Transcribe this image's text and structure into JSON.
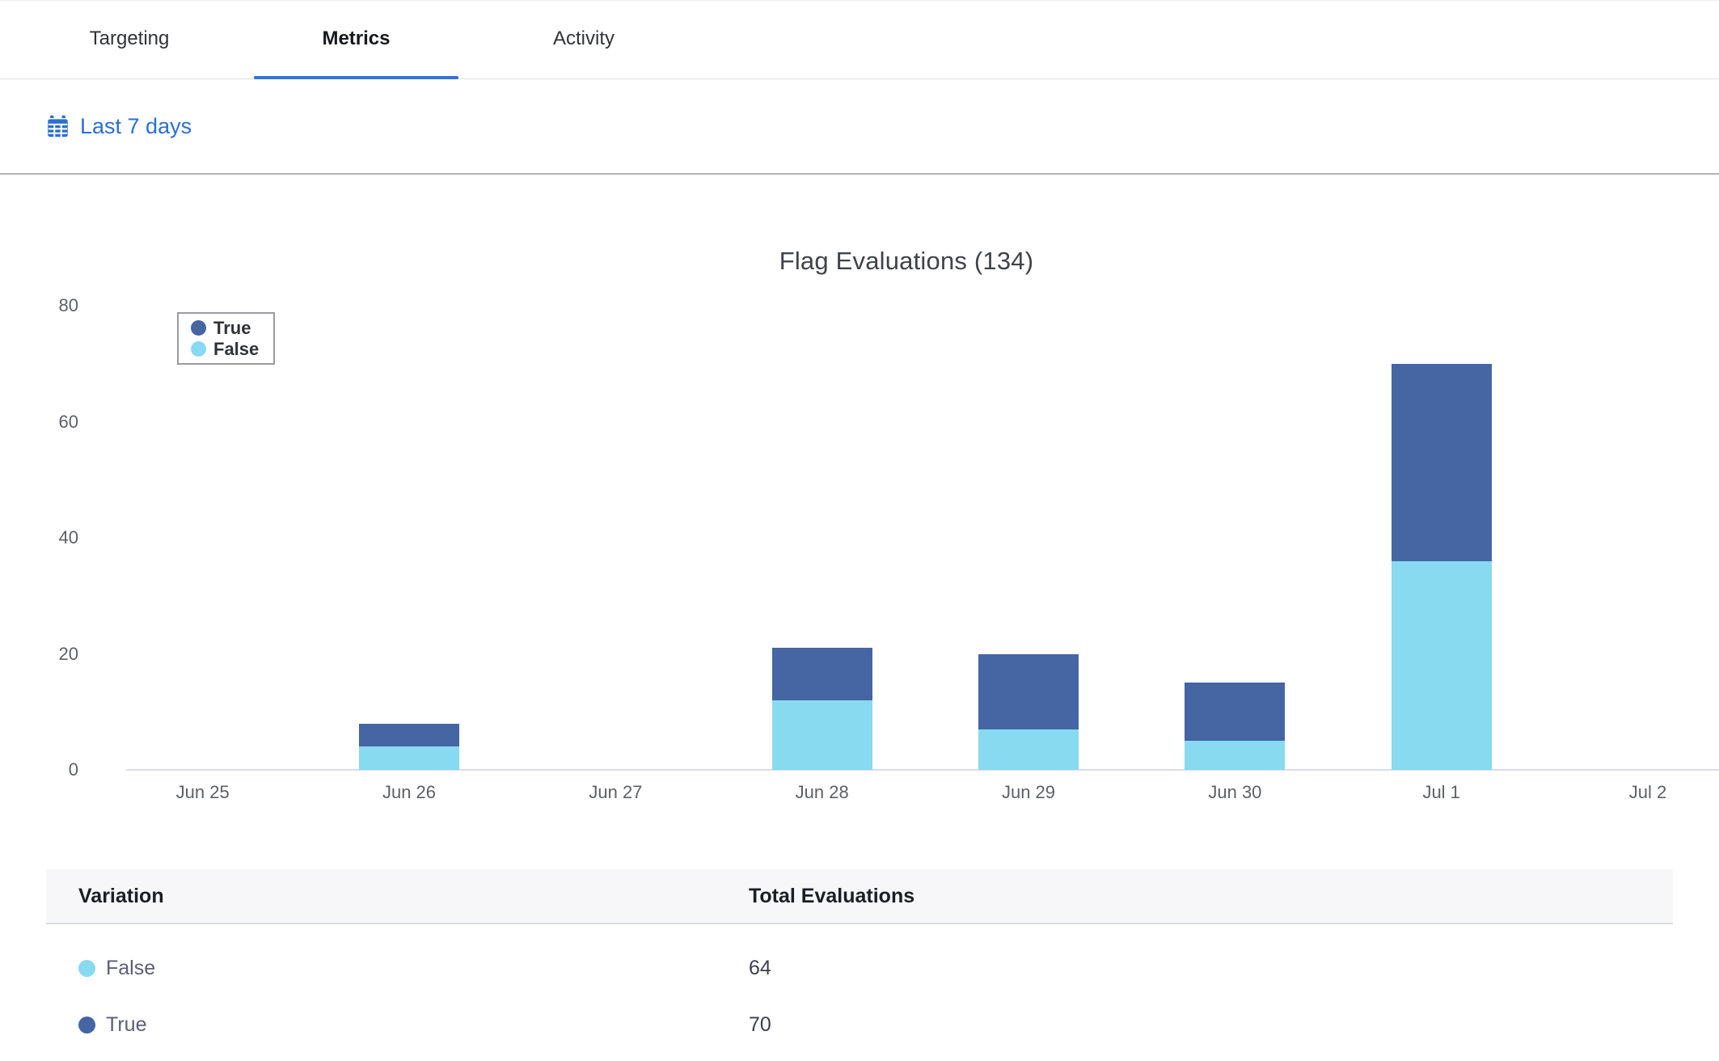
{
  "tabs": [
    {
      "label": "Targeting",
      "active": false
    },
    {
      "label": "Metrics",
      "active": true
    },
    {
      "label": "Activity",
      "active": false
    }
  ],
  "toolbar": {
    "date_range_label": "Last 7 days",
    "link_color": "#2B6FD3"
  },
  "chart_data": {
    "type": "bar",
    "stacked": true,
    "title": "Flag Evaluations (134)",
    "total_evaluations": 134,
    "categories": [
      "Jun 25",
      "Jun 26",
      "Jun 27",
      "Jun 28",
      "Jun 29",
      "Jun 30",
      "Jul 1",
      "Jul 2"
    ],
    "series": [
      {
        "name": "True",
        "color": "#4565A3",
        "values": [
          0,
          4,
          0,
          9,
          13,
          10,
          34,
          0
        ],
        "total": 70
      },
      {
        "name": "False",
        "color": "#87DAEF",
        "values": [
          0,
          4,
          0,
          12,
          7,
          5,
          36,
          0
        ],
        "total": 64
      }
    ],
    "stack_order_bottom_to_top": [
      "False",
      "True"
    ],
    "xlabel": "",
    "ylabel": "",
    "ylim": [
      0,
      80
    ],
    "yticks": [
      0,
      20,
      40,
      60,
      80
    ],
    "grid": false,
    "legend_position": "top-left",
    "legend": [
      {
        "label": "True",
        "color": "#4565A3"
      },
      {
        "label": "False",
        "color": "#87DAEF"
      }
    ]
  },
  "table": {
    "columns": [
      "Variation",
      "Total Evaluations"
    ],
    "rows": [
      {
        "variation": "False",
        "color": "#87DAEF",
        "total": "64"
      },
      {
        "variation": "True",
        "color": "#4565A3",
        "total": "70"
      }
    ]
  }
}
